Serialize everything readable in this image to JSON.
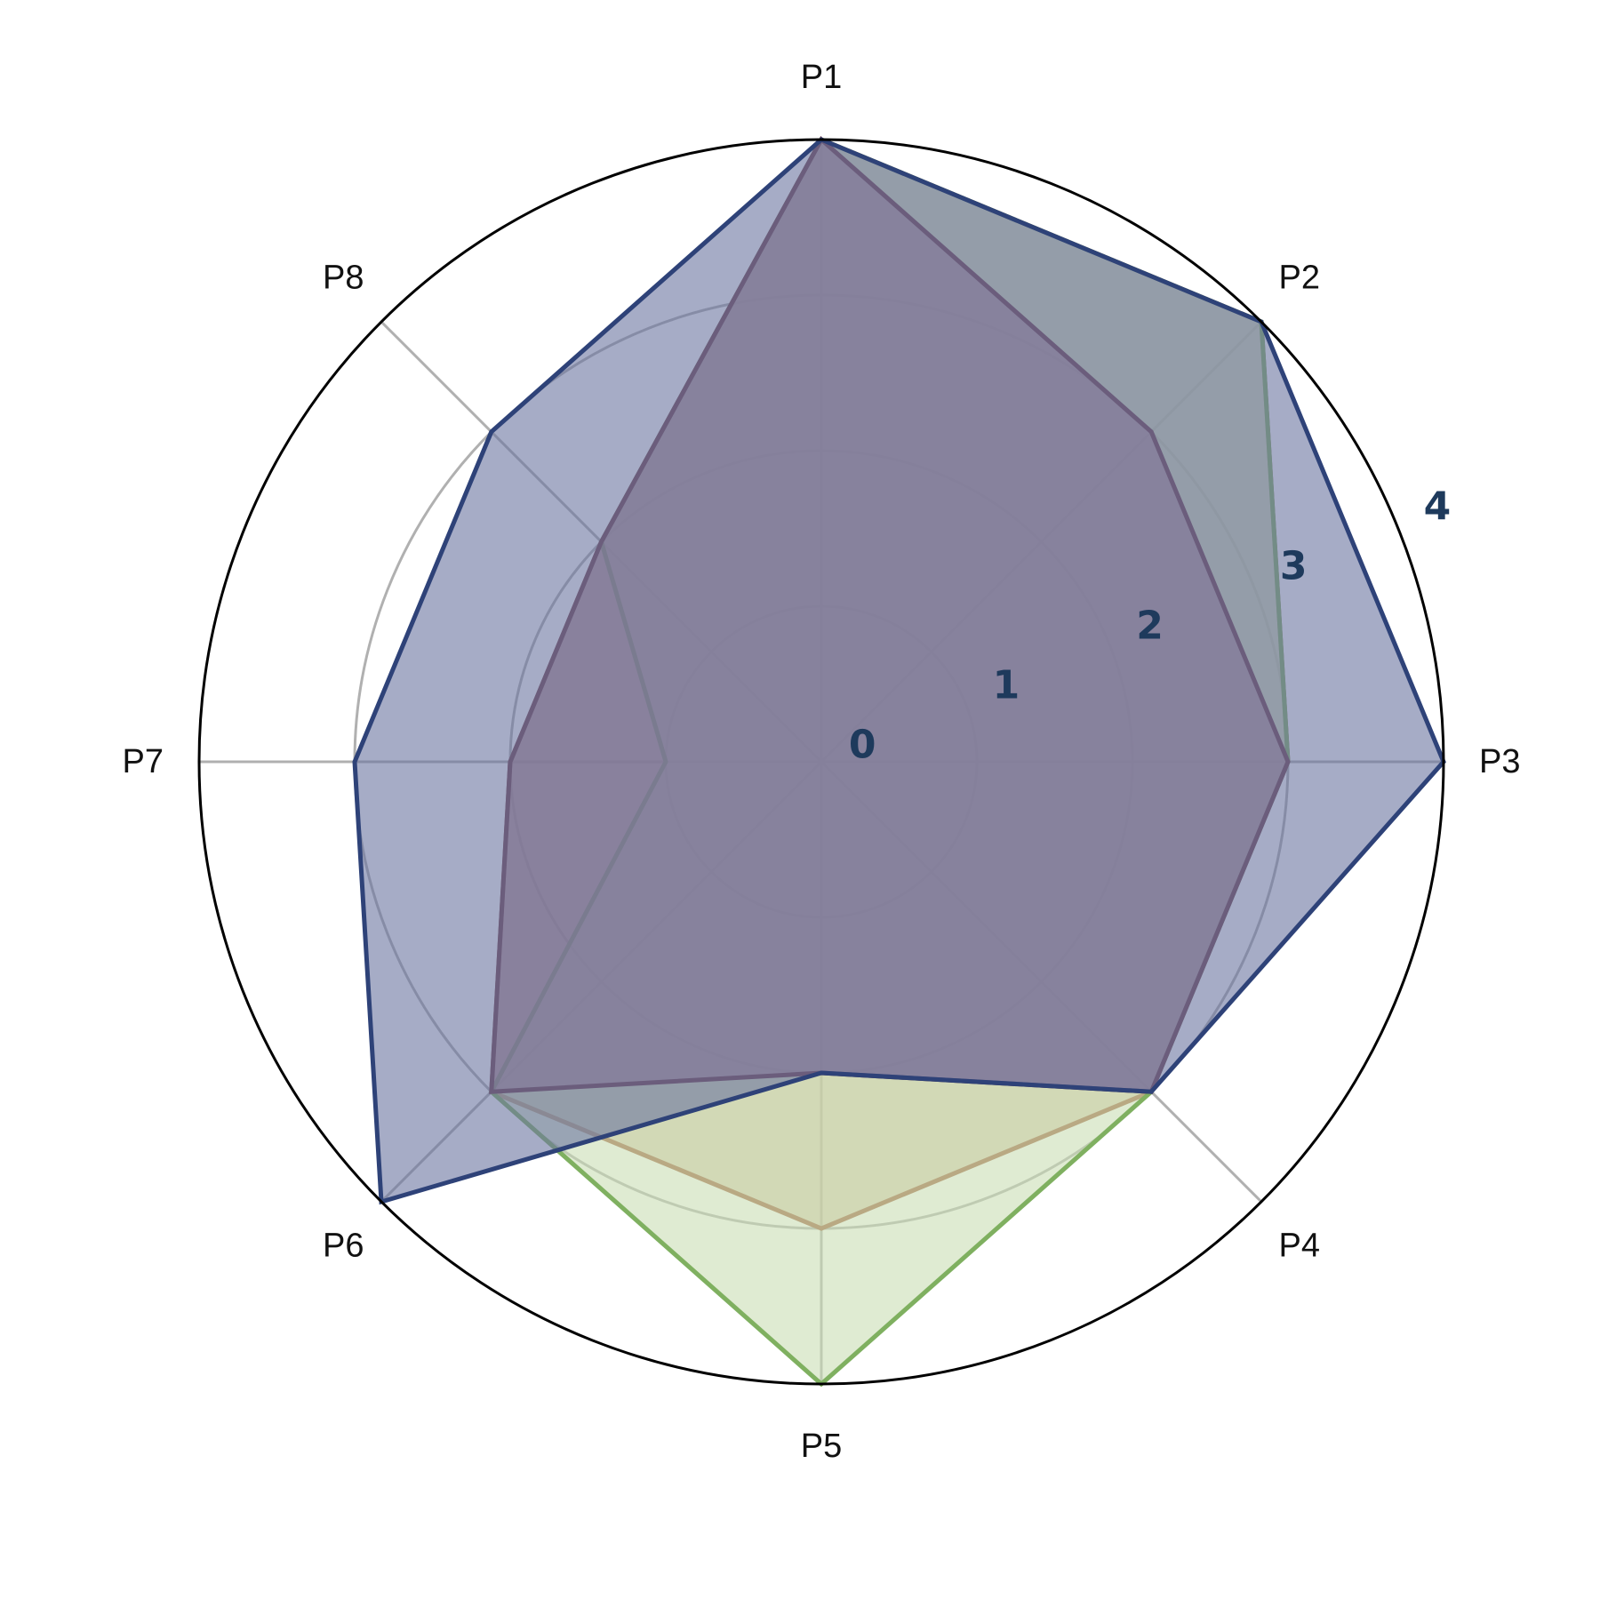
{
  "chart_data": {
    "type": "radar",
    "axes": [
      "P1",
      "P2",
      "P3",
      "P4",
      "P5",
      "P6",
      "P7",
      "P8"
    ],
    "rlim": [
      0,
      4
    ],
    "ticks": [
      "0",
      "1",
      "2",
      "3",
      "4"
    ],
    "grid": true,
    "legend": "none",
    "series": [
      {
        "values": [
          4,
          4,
          3,
          3,
          3,
          3,
          2,
          2
        ],
        "stroke": "#a05a3a",
        "fill": "#c8b48c"
      },
      {
        "values": [
          4,
          4,
          3,
          3,
          4,
          3,
          1,
          2
        ],
        "stroke": "#7fb060",
        "fill": "#c9ddb4"
      },
      {
        "values": [
          4,
          3,
          3,
          3,
          2,
          3,
          2,
          2
        ],
        "stroke": "#6b3a48",
        "fill": "#9c6b86"
      },
      {
        "values": [
          4,
          4,
          4,
          3,
          2,
          4,
          3,
          3
        ],
        "stroke": "#2e4278",
        "fill": "#6a75a0"
      }
    ],
    "colors": {
      "outer_ring": "#000000",
      "grid": "#b0b0b0",
      "tick_label": "#1e3a5c",
      "axis_label": "#111111"
    }
  }
}
